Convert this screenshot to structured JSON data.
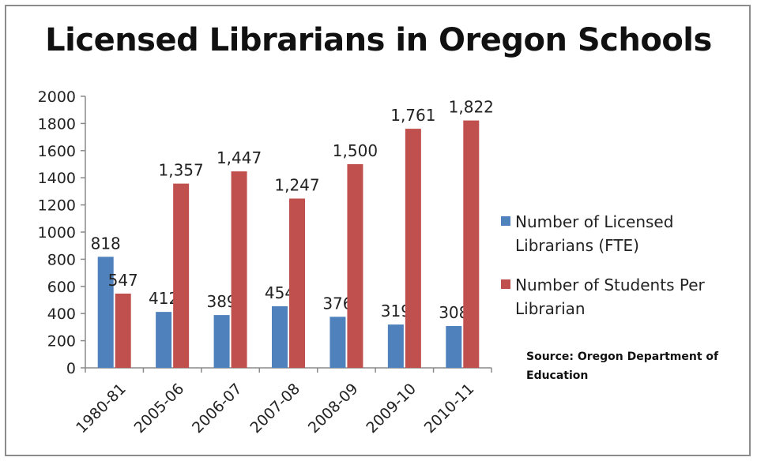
{
  "chart_data": {
    "type": "bar",
    "title": "Licensed Librarians in Oregon Schools",
    "categories": [
      "1980-81",
      "2005-06",
      "2006-07",
      "2007-08",
      "2008-09",
      "2009-10",
      "2010-11"
    ],
    "series": [
      {
        "name": "Number of Licensed Librarians (FTE)",
        "color": "#4f81bd",
        "values": [
          818,
          412,
          389,
          454,
          376,
          319,
          308
        ],
        "labels": [
          "818",
          "412",
          "389",
          "454",
          "376",
          "319",
          "308"
        ]
      },
      {
        "name": "Number of Students Per Librarian",
        "color": "#c0504d",
        "values": [
          547,
          1357,
          1447,
          1247,
          1500,
          1761,
          1822
        ],
        "labels": [
          "547",
          "1,357",
          "1,447",
          "1,247",
          "1,500",
          "1,761",
          "1,822"
        ]
      }
    ],
    "ylim": [
      0,
      2000
    ],
    "yticks": [
      0,
      200,
      400,
      600,
      800,
      1000,
      1200,
      1400,
      1600,
      1800,
      2000
    ],
    "grid": false,
    "legend_position": "right",
    "annotation": "Source: Oregon Department of Education"
  }
}
